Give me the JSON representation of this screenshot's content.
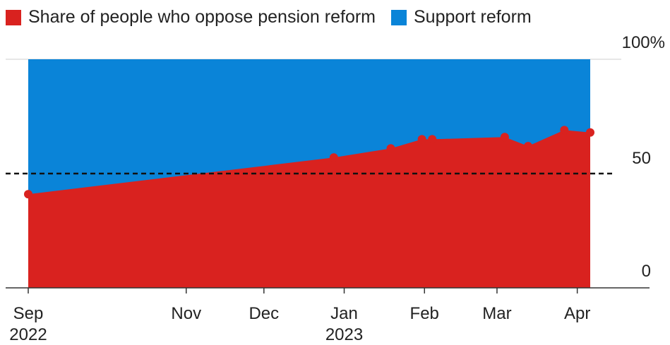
{
  "chart_data": {
    "type": "area",
    "legend": [
      {
        "label": "Share of people who oppose pension reform",
        "color": "#d9221f"
      },
      {
        "label": "Support reform",
        "color": "#0a84d8"
      }
    ],
    "series": [
      {
        "name": "Share of people who oppose pension reform",
        "color": "#d9221f",
        "points": [
          {
            "date": "2022-09-01",
            "value": 41
          },
          {
            "date": "2022-12-28",
            "value": 57
          },
          {
            "date": "2023-01-19",
            "value": 61
          },
          {
            "date": "2023-01-31",
            "value": 65
          },
          {
            "date": "2023-02-04",
            "value": 65
          },
          {
            "date": "2023-03-04",
            "value": 66
          },
          {
            "date": "2023-03-13",
            "value": 62
          },
          {
            "date": "2023-03-27",
            "value": 69
          },
          {
            "date": "2023-04-06",
            "value": 68
          }
        ]
      }
    ],
    "support_color": "#0a84d8",
    "ylim": [
      0,
      100
    ],
    "y_ticks": [
      {
        "value": 100,
        "label": "100%"
      },
      {
        "value": 50,
        "label": "50"
      },
      {
        "value": 0,
        "label": "0"
      }
    ],
    "x_ticks": [
      {
        "date": "2022-09-01",
        "label": "Sep",
        "sublabel": "2022"
      },
      {
        "date": "2022-11-01",
        "label": "Nov",
        "sublabel": ""
      },
      {
        "date": "2022-12-01",
        "label": "Dec",
        "sublabel": ""
      },
      {
        "date": "2023-01-01",
        "label": "Jan",
        "sublabel": "2023"
      },
      {
        "date": "2023-02-01",
        "label": "Feb",
        "sublabel": ""
      },
      {
        "date": "2023-03-01",
        "label": "Mar",
        "sublabel": ""
      },
      {
        "date": "2023-04-01",
        "label": "Apr",
        "sublabel": ""
      }
    ],
    "reference_line": {
      "value": 50,
      "style": "dashed"
    }
  }
}
